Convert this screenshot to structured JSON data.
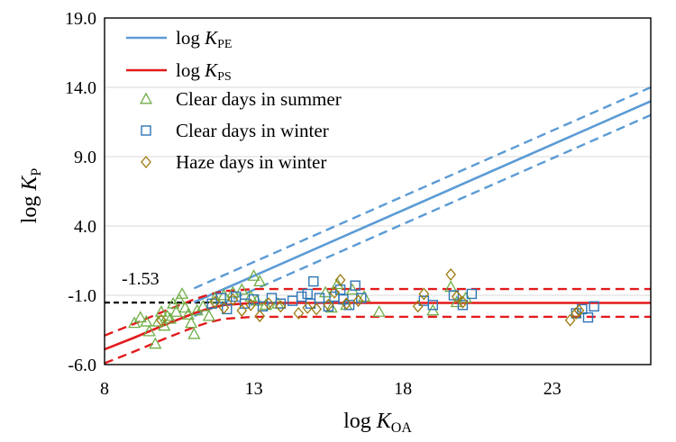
{
  "chart_data": {
    "type": "scatter",
    "xlabel": {
      "base": "log ",
      "italic": "K",
      "sub": "OA"
    },
    "ylabel": {
      "base": "log ",
      "italic": "K",
      "sub": "P"
    },
    "xlim": [
      8,
      26.3
    ],
    "ylim": [
      -6,
      19
    ],
    "xticks": [
      "8",
      "13",
      "18",
      "23"
    ],
    "yticks": [
      "-6.0",
      "-1.0",
      "4.0",
      "9.0",
      "14.0",
      "19.0"
    ],
    "grid": "horizontal",
    "legend_position": "top-left",
    "annotation": {
      "text": "-1.53",
      "y": -1.53
    },
    "colors": {
      "pe": "#5b9bd5",
      "ps": "#e31a1c",
      "summer": "#70ad47",
      "winter_clear": "#2e75b6",
      "winter_haze": "#9c7a10",
      "baseline": "#000000"
    },
    "lines": [
      {
        "key": "pe",
        "name_prefix": "log ",
        "name_italic": "K",
        "name_sub": "PE",
        "x": [
          11.0,
          26.3
        ],
        "y": [
          -1.5,
          13.0
        ],
        "dashed_offset": 1.0
      },
      {
        "key": "ps",
        "name_prefix": "log ",
        "name_italic": "K",
        "name_sub": "PS",
        "x": [
          8,
          9,
          10,
          11,
          11.5,
          12,
          13,
          26.3
        ],
        "y": [
          -4.9,
          -4.05,
          -3.15,
          -2.3,
          -1.95,
          -1.7,
          -1.55,
          -1.55
        ],
        "dashed_offset": 1.0
      }
    ],
    "series": [
      {
        "key": "summer",
        "name": "Clear days in summer",
        "marker": "triangle",
        "points": [
          [
            9.0,
            -3.0
          ],
          [
            9.2,
            -2.6
          ],
          [
            9.4,
            -2.9
          ],
          [
            9.5,
            -3.6
          ],
          [
            9.7,
            -4.5
          ],
          [
            9.8,
            -2.9
          ],
          [
            9.9,
            -2.2
          ],
          [
            10.0,
            -3.2
          ],
          [
            10.1,
            -2.5
          ],
          [
            10.2,
            -2.7
          ],
          [
            10.3,
            -1.6
          ],
          [
            10.4,
            -2.2
          ],
          [
            10.5,
            -1.3
          ],
          [
            10.6,
            -0.9
          ],
          [
            10.7,
            -1.9
          ],
          [
            10.8,
            -2.4
          ],
          [
            10.9,
            -3.0
          ],
          [
            11.0,
            -3.8
          ],
          [
            11.1,
            -2.1
          ],
          [
            11.3,
            -1.8
          ],
          [
            11.5,
            -2.5
          ],
          [
            11.7,
            -1.2
          ],
          [
            12.0,
            -1.0
          ],
          [
            12.3,
            -0.8
          ],
          [
            12.6,
            -0.6
          ],
          [
            12.9,
            -1.1
          ],
          [
            13.0,
            0.4
          ],
          [
            13.1,
            -1.4
          ],
          [
            13.2,
            0.0
          ],
          [
            13.4,
            -1.7
          ],
          [
            13.8,
            -1.6
          ],
          [
            15.4,
            -0.8
          ],
          [
            15.6,
            -1.9
          ],
          [
            15.8,
            -0.2
          ],
          [
            16.1,
            -1.7
          ],
          [
            16.3,
            -0.6
          ],
          [
            16.7,
            -1.1
          ],
          [
            17.2,
            -2.2
          ],
          [
            19.0,
            -2.1
          ],
          [
            19.6,
            -0.4
          ],
          [
            19.8,
            -1.5
          ],
          [
            20.1,
            -1.2
          ]
        ]
      },
      {
        "key": "winter_clear",
        "name": "Clear days in winter",
        "marker": "square",
        "points": [
          [
            11.6,
            -1.6
          ],
          [
            11.9,
            -1.2
          ],
          [
            12.1,
            -2.0
          ],
          [
            12.4,
            -1.1
          ],
          [
            12.7,
            -1.6
          ],
          [
            13.0,
            -1.3
          ],
          [
            13.3,
            -1.8
          ],
          [
            13.6,
            -1.2
          ],
          [
            13.9,
            -1.6
          ],
          [
            14.3,
            -1.4
          ],
          [
            14.6,
            -1.1
          ],
          [
            14.8,
            -0.9
          ],
          [
            14.9,
            -1.6
          ],
          [
            15.0,
            0.0
          ],
          [
            15.2,
            -1.2
          ],
          [
            15.5,
            -1.8
          ],
          [
            15.7,
            -1.1
          ],
          [
            15.9,
            -0.6
          ],
          [
            16.0,
            -1.3
          ],
          [
            16.2,
            -1.7
          ],
          [
            16.4,
            -0.3
          ],
          [
            16.6,
            -1.2
          ],
          [
            18.7,
            -1.4
          ],
          [
            19.0,
            -1.7
          ],
          [
            19.7,
            -1.0
          ],
          [
            20.0,
            -1.7
          ],
          [
            20.3,
            -0.9
          ],
          [
            23.8,
            -2.3
          ],
          [
            24.0,
            -2.0
          ],
          [
            24.2,
            -2.6
          ],
          [
            24.4,
            -1.8
          ]
        ]
      },
      {
        "key": "winter_haze",
        "name": "Haze days in winter",
        "marker": "diamond",
        "points": [
          [
            9.9,
            -2.8
          ],
          [
            11.7,
            -1.5
          ],
          [
            12.0,
            -1.9
          ],
          [
            12.3,
            -1.3
          ],
          [
            12.6,
            -2.1
          ],
          [
            12.9,
            -1.7
          ],
          [
            13.2,
            -2.5
          ],
          [
            13.5,
            -1.6
          ],
          [
            13.9,
            -1.8
          ],
          [
            14.5,
            -2.3
          ],
          [
            14.8,
            -1.9
          ],
          [
            15.1,
            -2.0
          ],
          [
            15.5,
            -1.7
          ],
          [
            15.7,
            -0.8
          ],
          [
            15.9,
            0.1
          ],
          [
            16.1,
            -1.6
          ],
          [
            16.5,
            -1.4
          ],
          [
            18.5,
            -1.8
          ],
          [
            18.7,
            -0.9
          ],
          [
            19.6,
            0.5
          ],
          [
            19.8,
            -1.1
          ],
          [
            20.0,
            -1.5
          ],
          [
            23.6,
            -2.8
          ],
          [
            23.8,
            -2.3
          ],
          [
            23.9,
            -2.1
          ]
        ]
      }
    ]
  }
}
